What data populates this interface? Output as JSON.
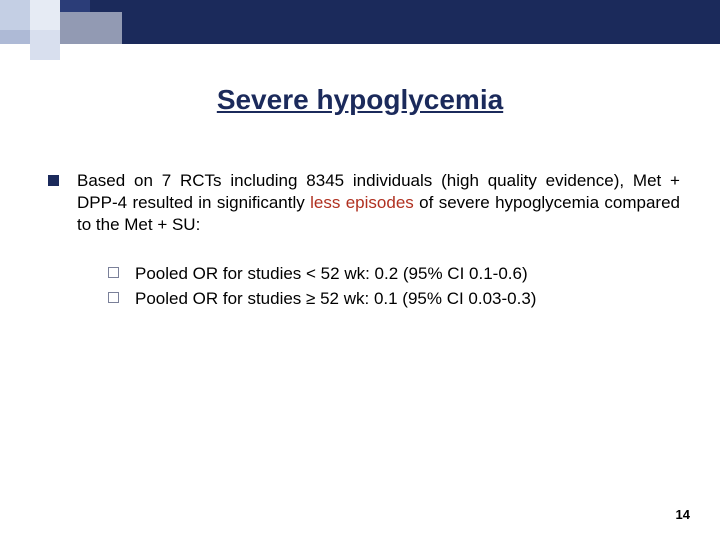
{
  "title": "Severe hypoglycemia",
  "main_bullet": {
    "prefix": "Based on 7 RCTs including 8345 individuals (high quality evidence), Met + DPP-4 resulted in significantly ",
    "highlight": "less episodes",
    "suffix": " of severe hypoglycemia compared to the Met + SU:"
  },
  "sub_bullets": [
    "Pooled OR for studies < 52 wk: 0.2 (95% CI 0.1-0.6)",
    "Pooled OR for studies ≥ 52 wk: 0.1 (95% CI 0.03-0.3)"
  ],
  "page_number": "14",
  "colors": {
    "navy": "#1b2a5b",
    "highlight": "#b03020",
    "background": "#ffffff"
  }
}
